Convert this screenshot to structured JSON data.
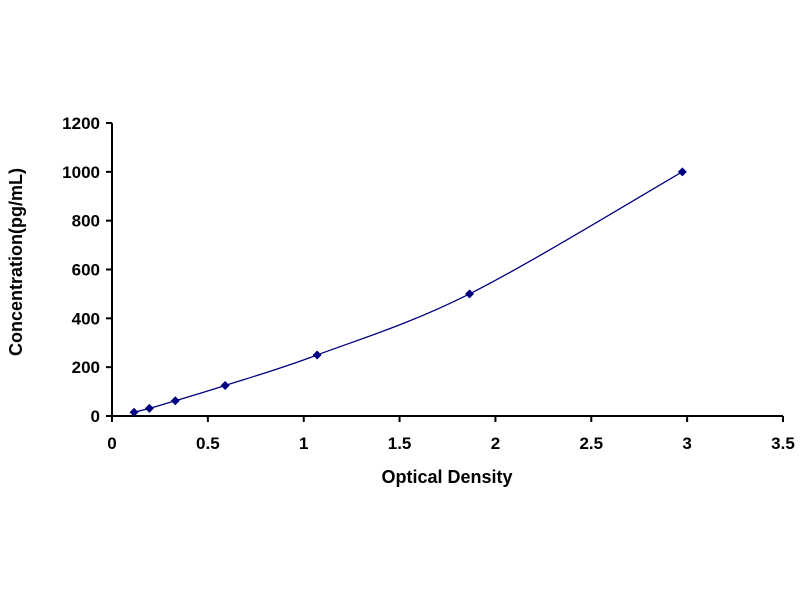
{
  "chart_data": {
    "type": "scatter",
    "xlabel": "Optical Density",
    "ylabel": "Concentration(pg/mL)",
    "xlim": [
      0,
      3.5
    ],
    "ylim": [
      0,
      1200
    ],
    "x_ticks": [
      0,
      0.5,
      1,
      1.5,
      2,
      2.5,
      3,
      3.5
    ],
    "y_ticks": [
      0,
      200,
      400,
      600,
      800,
      1000,
      1200
    ],
    "x_tick_labels": [
      "0",
      "0.5",
      "1",
      "1.5",
      "2",
      "2.5",
      "3",
      "3.5"
    ],
    "y_tick_labels": [
      "0",
      "200",
      "400",
      "600",
      "800",
      "1000",
      "1200"
    ],
    "grid": false,
    "legend": "none",
    "marker": "diamond",
    "smoothed_line": true,
    "series": [
      {
        "x": [
          0.115,
          0.195,
          0.33,
          0.59,
          1.07,
          1.865,
          2.975
        ],
        "y": [
          15.6,
          31.2,
          62.5,
          125,
          250,
          500,
          1000
        ]
      }
    ]
  },
  "colors": {
    "series": "#000080",
    "axis": "#000000"
  }
}
